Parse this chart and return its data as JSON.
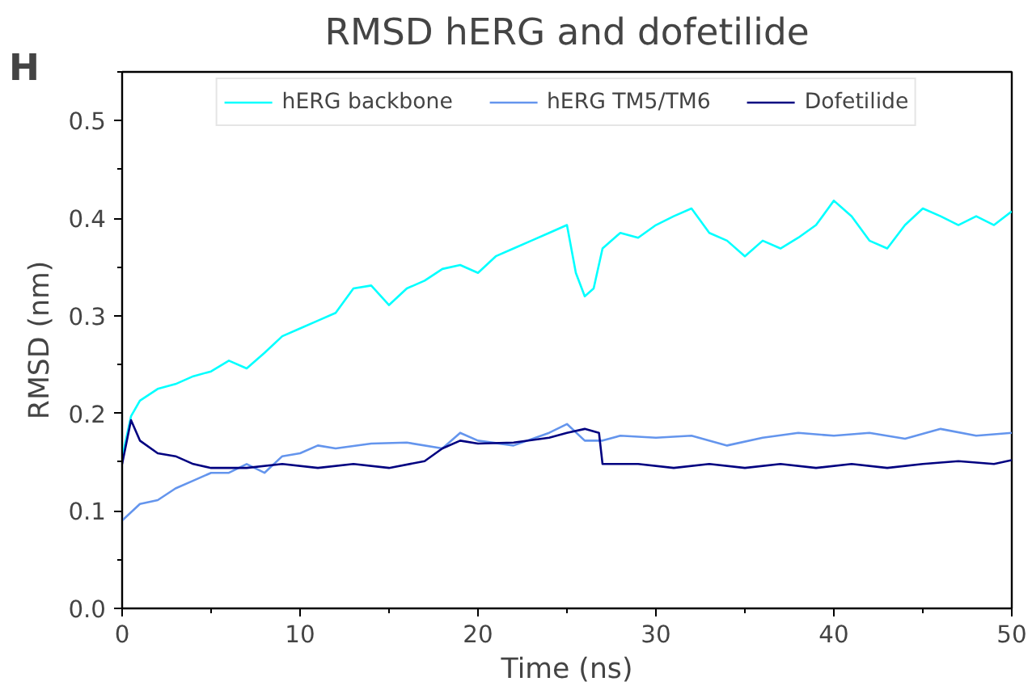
{
  "chart_data": {
    "type": "line",
    "title": "RMSD hERG and dofetilide",
    "xlabel": "Time (ns)",
    "ylabel": "RMSD (nm)",
    "annotations": [
      "H"
    ],
    "xlim": [
      0,
      50
    ],
    "ylim": [
      0,
      0.55
    ],
    "xticks": [
      0,
      10,
      20,
      30,
      40,
      50
    ],
    "yticks": [
      {
        "value": 0,
        "label": "0.0"
      },
      0.1,
      0.2,
      0.3,
      0.4,
      0.5
    ],
    "grid": false,
    "legend": "top",
    "line_style": "solid",
    "marker": "none",
    "series": [
      {
        "name": "hERG backbone",
        "color": "#00ffff",
        "x": [
          0,
          0.5,
          1,
          2,
          3,
          4,
          5,
          6,
          7,
          8,
          9,
          10,
          11,
          12,
          13,
          14,
          15,
          16,
          17,
          18,
          19,
          20,
          21,
          22,
          23,
          24,
          25,
          25.5,
          26,
          26.5,
          27,
          28,
          29,
          30,
          31,
          32,
          33,
          34,
          35,
          36,
          37,
          38,
          39,
          40,
          41,
          42,
          43,
          44,
          45,
          46,
          47,
          48,
          49,
          50
        ],
        "values": [
          0.155,
          0.197,
          0.213,
          0.225,
          0.23,
          0.238,
          0.243,
          0.254,
          0.246,
          0.262,
          0.279,
          0.287,
          0.295,
          0.303,
          0.328,
          0.331,
          0.311,
          0.328,
          0.336,
          0.348,
          0.352,
          0.344,
          0.361,
          0.369,
          0.377,
          0.385,
          0.393,
          0.344,
          0.32,
          0.328,
          0.369,
          0.385,
          0.38,
          0.393,
          0.402,
          0.41,
          0.385,
          0.377,
          0.361,
          0.377,
          0.369,
          0.38,
          0.393,
          0.418,
          0.402,
          0.377,
          0.369,
          0.393,
          0.41,
          0.402,
          0.393,
          0.402,
          0.393,
          0.407
        ]
      },
      {
        "name": "hERG TM5/TM6",
        "color": "#6495ed",
        "x": [
          0,
          1,
          2,
          3,
          4,
          5,
          6,
          7,
          8,
          9,
          10,
          11,
          12,
          14,
          16,
          18,
          19,
          20,
          22,
          24,
          25,
          26,
          27,
          28,
          30,
          32,
          34,
          36,
          38,
          40,
          42,
          44,
          46,
          48,
          50
        ],
        "values": [
          0.09,
          0.107,
          0.111,
          0.123,
          0.131,
          0.139,
          0.139,
          0.148,
          0.139,
          0.156,
          0.159,
          0.167,
          0.164,
          0.169,
          0.17,
          0.164,
          0.18,
          0.172,
          0.167,
          0.18,
          0.189,
          0.172,
          0.172,
          0.177,
          0.175,
          0.177,
          0.167,
          0.175,
          0.18,
          0.177,
          0.18,
          0.174,
          0.184,
          0.177,
          0.18
        ]
      },
      {
        "name": "Dofetilide",
        "color": "#000080",
        "x": [
          0,
          0.5,
          1,
          2,
          3,
          4,
          5,
          7,
          9,
          11,
          13,
          15,
          17,
          18,
          19,
          20,
          22,
          24,
          25,
          26,
          26.8,
          27,
          29,
          31,
          33,
          35,
          37,
          39,
          41,
          43,
          45,
          47,
          49,
          50
        ],
        "values": [
          0.148,
          0.193,
          0.172,
          0.159,
          0.156,
          0.148,
          0.144,
          0.144,
          0.148,
          0.144,
          0.148,
          0.144,
          0.151,
          0.164,
          0.172,
          0.169,
          0.17,
          0.175,
          0.18,
          0.184,
          0.18,
          0.148,
          0.148,
          0.144,
          0.148,
          0.144,
          0.148,
          0.144,
          0.148,
          0.144,
          0.148,
          0.151,
          0.148,
          0.152
        ]
      }
    ]
  }
}
